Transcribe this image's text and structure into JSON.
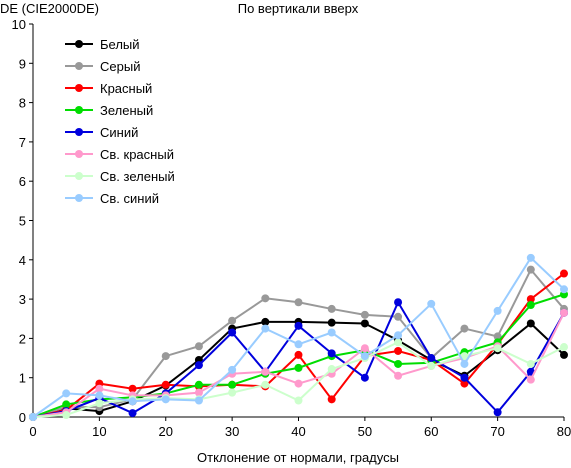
{
  "chart_data": {
    "type": "line",
    "title": "По вертикали вверх",
    "ylabel": "DE (CIE2000DE)",
    "xlabel": "Отклонение от нормали, градусы",
    "x": [
      0,
      5,
      10,
      15,
      20,
      25,
      30,
      35,
      40,
      45,
      50,
      55,
      60,
      65,
      70,
      75,
      80
    ],
    "xlim": [
      0,
      80
    ],
    "ylim": [
      0,
      10
    ],
    "xticks": [
      "0",
      "10",
      "20",
      "30",
      "40",
      "50",
      "60",
      "70",
      "80"
    ],
    "yticks": [
      "0",
      "1",
      "2",
      "3",
      "4",
      "5",
      "6",
      "7",
      "8",
      "9",
      "10"
    ],
    "grid": false,
    "legend_position": "top-left",
    "series": [
      {
        "name": "Белый",
        "color": "#000000",
        "values": [
          0,
          0.22,
          0.15,
          0.4,
          0.8,
          1.45,
          2.25,
          2.42,
          2.42,
          2.4,
          2.38,
          1.95,
          1.45,
          1.05,
          1.7,
          2.38,
          1.58
        ]
      },
      {
        "name": "Серый",
        "color": "#999999",
        "values": [
          0,
          0.25,
          0.25,
          0.45,
          1.55,
          1.8,
          2.45,
          3.02,
          2.92,
          2.75,
          2.6,
          2.55,
          1.5,
          2.25,
          2.05,
          3.75,
          2.75
        ]
      },
      {
        "name": "Красный",
        "color": "#ff0000",
        "values": [
          0,
          0.18,
          0.85,
          0.72,
          0.82,
          0.78,
          0.82,
          0.78,
          1.58,
          0.45,
          1.55,
          1.68,
          1.45,
          0.85,
          1.85,
          3.0,
          3.65
        ]
      },
      {
        "name": "Зеленый",
        "color": "#00dd00",
        "values": [
          0,
          0.32,
          0.45,
          0.5,
          0.6,
          0.82,
          0.82,
          1.1,
          1.25,
          1.55,
          1.7,
          1.35,
          1.38,
          1.65,
          1.9,
          2.85,
          3.12
        ]
      },
      {
        "name": "Синий",
        "color": "#0000dd",
        "values": [
          0,
          0.15,
          0.48,
          0.1,
          0.6,
          1.32,
          2.15,
          1.15,
          2.32,
          1.62,
          1.0,
          2.92,
          1.5,
          1.0,
          0.12,
          1.15,
          2.65
        ]
      },
      {
        "name": "Св. красный",
        "color": "#ff99cc",
        "values": [
          0,
          0.12,
          0.72,
          0.55,
          0.55,
          0.62,
          1.1,
          1.15,
          0.85,
          1.1,
          1.75,
          1.05,
          1.3,
          1.5,
          1.8,
          0.95,
          2.65
        ]
      },
      {
        "name": "Св. зеленый",
        "color": "#ccffcc",
        "values": [
          0,
          0.05,
          0.35,
          0.45,
          0.48,
          0.45,
          0.62,
          0.82,
          0.42,
          1.22,
          1.5,
          1.9,
          1.3,
          1.55,
          1.75,
          1.35,
          1.78
        ]
      },
      {
        "name": "Св. синий",
        "color": "#99ccff",
        "values": [
          0,
          0.6,
          0.55,
          0.4,
          0.45,
          0.42,
          1.2,
          2.25,
          1.85,
          2.15,
          1.55,
          2.08,
          2.88,
          1.35,
          2.7,
          4.05,
          3.25
        ]
      }
    ]
  }
}
